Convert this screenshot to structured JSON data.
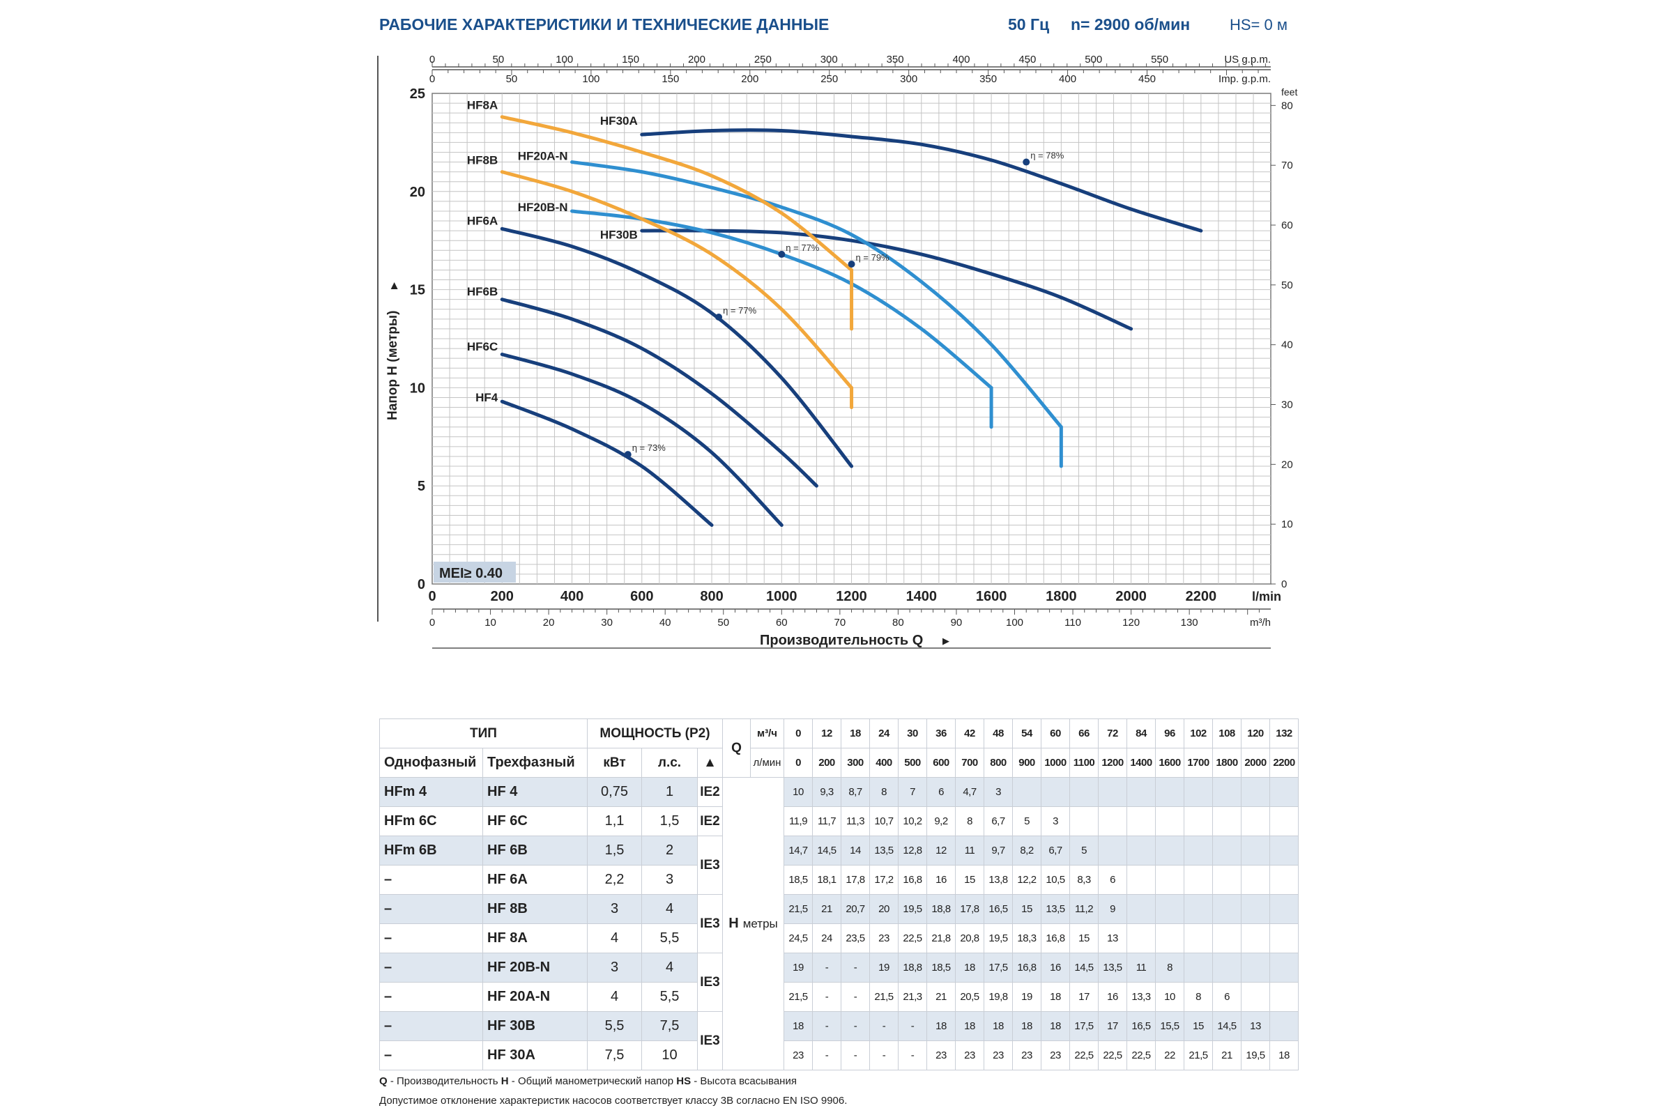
{
  "header": {
    "title": "РАБОЧИЕ ХАРАКТЕРИСТИКИ И ТЕХНИЧЕСКИЕ ДАННЫЕ",
    "freq": "50 Гц",
    "speed": "n= 2900 об/мин",
    "hs": "HS= 0 м"
  },
  "chart_data": {
    "type": "line",
    "xlabel": "Производительность Q",
    "ylabel": "Напор H (метры)",
    "x_unit": "l/min",
    "y_unit": "метры",
    "xlim": [
      0,
      2400
    ],
    "ylim": [
      0,
      25
    ],
    "grid": true,
    "x_ticks": [
      0,
      200,
      400,
      600,
      800,
      1000,
      1200,
      1400,
      1600,
      1800,
      2000,
      2200
    ],
    "y_ticks": [
      0,
      5,
      10,
      15,
      20,
      25
    ],
    "secondary_axes": {
      "us_gpm": {
        "label": "US g.p.m.",
        "ticks": [
          0,
          50,
          100,
          150,
          200,
          250,
          300,
          350,
          400,
          450,
          500,
          550
        ]
      },
      "imp_gpm": {
        "label": "Imp. g.p.m.",
        "ticks": [
          0,
          50,
          100,
          150,
          200,
          250,
          300,
          350,
          400,
          450
        ]
      },
      "m3h": {
        "label": "m³/h",
        "ticks": [
          0,
          10,
          20,
          30,
          40,
          50,
          60,
          70,
          80,
          90,
          100,
          110,
          120,
          130
        ]
      },
      "feet": {
        "label": "feet",
        "ticks": [
          0,
          10,
          20,
          30,
          40,
          50,
          60,
          70,
          80
        ]
      }
    },
    "badge": "MEI≥ 0.40",
    "series": [
      {
        "name": "HF30A",
        "color": "#173f7c",
        "label_at": [
          600,
          23.4
        ],
        "points": [
          [
            600,
            22.9
          ],
          [
            800,
            23.1
          ],
          [
            1000,
            23.1
          ],
          [
            1200,
            22.8
          ],
          [
            1400,
            22.4
          ],
          [
            1600,
            21.6
          ],
          [
            1800,
            20.4
          ],
          [
            2000,
            19.1
          ],
          [
            2200,
            18.0
          ]
        ]
      },
      {
        "name": "HF30B",
        "color": "#173f7c",
        "label_at": [
          600,
          17.6
        ],
        "points": [
          [
            600,
            18.0
          ],
          [
            800,
            18.0
          ],
          [
            1000,
            17.9
          ],
          [
            1200,
            17.5
          ],
          [
            1400,
            16.8
          ],
          [
            1600,
            15.8
          ],
          [
            1800,
            14.6
          ],
          [
            2000,
            13.0
          ]
        ]
      },
      {
        "name": "HF20A-N",
        "color": "#2f8fd0",
        "label_at": [
          400,
          21.6
        ],
        "points": [
          [
            400,
            21.5
          ],
          [
            600,
            21.0
          ],
          [
            800,
            20.2
          ],
          [
            1000,
            19.2
          ],
          [
            1200,
            17.8
          ],
          [
            1400,
            15.4
          ],
          [
            1600,
            12.2
          ],
          [
            1800,
            8.0
          ],
          [
            1800,
            6.0
          ]
        ]
      },
      {
        "name": "HF20B-N",
        "color": "#2f8fd0",
        "label_at": [
          400,
          19.0
        ],
        "points": [
          [
            400,
            19.0
          ],
          [
            600,
            18.6
          ],
          [
            800,
            17.9
          ],
          [
            1000,
            16.8
          ],
          [
            1200,
            15.3
          ],
          [
            1400,
            13.0
          ],
          [
            1600,
            10.0
          ],
          [
            1600,
            8.0
          ]
        ]
      },
      {
        "name": "HF8A",
        "color": "#f2a73b",
        "label_at": [
          200,
          24.2
        ],
        "points": [
          [
            200,
            23.8
          ],
          [
            400,
            23.0
          ],
          [
            600,
            22.0
          ],
          [
            800,
            20.8
          ],
          [
            1000,
            18.9
          ],
          [
            1200,
            16.0
          ],
          [
            1200,
            13.0
          ]
        ]
      },
      {
        "name": "HF8B",
        "color": "#f2a73b",
        "label_at": [
          200,
          21.4
        ],
        "points": [
          [
            200,
            21.0
          ],
          [
            400,
            20.0
          ],
          [
            600,
            18.6
          ],
          [
            800,
            16.8
          ],
          [
            1000,
            14.0
          ],
          [
            1200,
            10.0
          ],
          [
            1200,
            9.0
          ]
        ]
      },
      {
        "name": "HF6A",
        "color": "#173f7c",
        "label_at": [
          200,
          18.3
        ],
        "points": [
          [
            200,
            18.1
          ],
          [
            400,
            17.2
          ],
          [
            600,
            15.8
          ],
          [
            800,
            13.8
          ],
          [
            1000,
            10.5
          ],
          [
            1200,
            6.0
          ]
        ]
      },
      {
        "name": "HF6B",
        "color": "#173f7c",
        "label_at": [
          200,
          14.7
        ],
        "points": [
          [
            200,
            14.5
          ],
          [
            400,
            13.5
          ],
          [
            600,
            12.0
          ],
          [
            800,
            9.7
          ],
          [
            1000,
            6.7
          ],
          [
            1100,
            5.0
          ]
        ]
      },
      {
        "name": "HF6C",
        "color": "#173f7c",
        "label_at": [
          200,
          11.9
        ],
        "points": [
          [
            200,
            11.7
          ],
          [
            400,
            10.7
          ],
          [
            600,
            9.2
          ],
          [
            800,
            6.7
          ],
          [
            1000,
            3.0
          ]
        ]
      },
      {
        "name": "HF4",
        "color": "#173f7c",
        "label_at": [
          200,
          9.3
        ],
        "points": [
          [
            200,
            9.3
          ],
          [
            400,
            7.9
          ],
          [
            600,
            6.0
          ],
          [
            800,
            3.0
          ]
        ]
      }
    ],
    "annotations": [
      {
        "text": "η = 78%",
        "x": 1700,
        "y": 21.5
      },
      {
        "text": "η = 79%",
        "x": 1200,
        "y": 16.3
      },
      {
        "text": "η = 77%",
        "x": 1000,
        "y": 16.8
      },
      {
        "text": "η = 77%",
        "x": 820,
        "y": 13.6
      },
      {
        "text": "η = 73%",
        "x": 560,
        "y": 6.6
      }
    ]
  },
  "table": {
    "col_type": "ТИП",
    "col_power": "МОЩНОСТЬ (P2)",
    "col_single": "Однофазный",
    "col_three": "Трехфазный",
    "col_kw": "кВт",
    "col_hp": "л.с.",
    "triangle": "▲",
    "q_label": "Q",
    "m3h_label": "м³/ч",
    "lmin_label": "л/мин",
    "h_label": "H",
    "h_unit": "метры",
    "q_m3h": [
      "0",
      "12",
      "18",
      "24",
      "30",
      "36",
      "42",
      "48",
      "54",
      "60",
      "66",
      "72",
      "84",
      "96",
      "102",
      "108",
      "120",
      "132"
    ],
    "q_lmin": [
      "0",
      "200",
      "300",
      "400",
      "500",
      "600",
      "700",
      "800",
      "900",
      "1000",
      "1100",
      "1200",
      "1400",
      "1600",
      "1700",
      "1800",
      "2000",
      "2200"
    ],
    "rows": [
      {
        "single": "HFm 4",
        "three": "HF 4",
        "kw": "0,75",
        "hp": "1",
        "ie": "IE2",
        "h": [
          "10",
          "9,3",
          "8,7",
          "8",
          "7",
          "6",
          "4,7",
          "3",
          "",
          "",
          "",
          "",
          "",
          "",
          "",
          "",
          "",
          ""
        ]
      },
      {
        "single": "HFm 6C",
        "three": "HF 6C",
        "kw": "1,1",
        "hp": "1,5",
        "ie": "IE2",
        "h": [
          "11,9",
          "11,7",
          "11,3",
          "10,7",
          "10,2",
          "9,2",
          "8",
          "6,7",
          "5",
          "3",
          "",
          "",
          "",
          "",
          "",
          "",
          "",
          ""
        ]
      },
      {
        "single": "HFm 6B",
        "three": "HF 6B",
        "kw": "1,5",
        "hp": "2",
        "ie": "IE3",
        "h": [
          "14,7",
          "14,5",
          "14",
          "13,5",
          "12,8",
          "12",
          "11",
          "9,7",
          "8,2",
          "6,7",
          "5",
          "",
          "",
          "",
          "",
          "",
          "",
          ""
        ]
      },
      {
        "single": "–",
        "three": "HF 6A",
        "kw": "2,2",
        "hp": "3",
        "ie": "",
        "h": [
          "18,5",
          "18,1",
          "17,8",
          "17,2",
          "16,8",
          "16",
          "15",
          "13,8",
          "12,2",
          "10,5",
          "8,3",
          "6",
          "",
          "",
          "",
          "",
          "",
          ""
        ]
      },
      {
        "single": "–",
        "three": "HF 8B",
        "kw": "3",
        "hp": "4",
        "ie": "IE3",
        "h": [
          "21,5",
          "21",
          "20,7",
          "20",
          "19,5",
          "18,8",
          "17,8",
          "16,5",
          "15",
          "13,5",
          "11,2",
          "9",
          "",
          "",
          "",
          "",
          "",
          ""
        ]
      },
      {
        "single": "–",
        "three": "HF 8A",
        "kw": "4",
        "hp": "5,5",
        "ie": "",
        "h": [
          "24,5",
          "24",
          "23,5",
          "23",
          "22,5",
          "21,8",
          "20,8",
          "19,5",
          "18,3",
          "16,8",
          "15",
          "13",
          "",
          "",
          "",
          "",
          "",
          ""
        ]
      },
      {
        "single": "–",
        "three": "HF 20B-N",
        "kw": "3",
        "hp": "4",
        "ie": "IE3",
        "h": [
          "19",
          "-",
          "-",
          "19",
          "18,8",
          "18,5",
          "18",
          "17,5",
          "16,8",
          "16",
          "14,5",
          "13,5",
          "11",
          "8",
          "",
          "",
          "",
          ""
        ]
      },
      {
        "single": "–",
        "three": "HF 20A-N",
        "kw": "4",
        "hp": "5,5",
        "ie": "",
        "h": [
          "21,5",
          "-",
          "-",
          "21,5",
          "21,3",
          "21",
          "20,5",
          "19,8",
          "19",
          "18",
          "17",
          "16",
          "13,3",
          "10",
          "8",
          "6",
          "",
          ""
        ]
      },
      {
        "single": "–",
        "three": "HF 30B",
        "kw": "5,5",
        "hp": "7,5",
        "ie": "IE3",
        "h": [
          "18",
          "-",
          "-",
          "-",
          "-",
          "18",
          "18",
          "18",
          "18",
          "18",
          "17,5",
          "17",
          "16,5",
          "15,5",
          "15",
          "14,5",
          "13",
          ""
        ]
      },
      {
        "single": "–",
        "three": "HF 30A",
        "kw": "7,5",
        "hp": "10",
        "ie": "",
        "h": [
          "23",
          "-",
          "-",
          "-",
          "-",
          "23",
          "23",
          "23",
          "23",
          "23",
          "22,5",
          "22,5",
          "22,5",
          "22",
          "21,5",
          "21",
          "19,5",
          "18"
        ]
      }
    ]
  },
  "notes": {
    "q": "Q",
    "q_text": " - Производительность  ",
    "h": "H",
    "h_text": " - Общий манометрический напор  ",
    "hs": "HS",
    "hs_text": " - Высота всасывания",
    "line2": "Допустимое отклонение характеристик насосов соответствует классу 3B согласно EN ISO 9906."
  }
}
